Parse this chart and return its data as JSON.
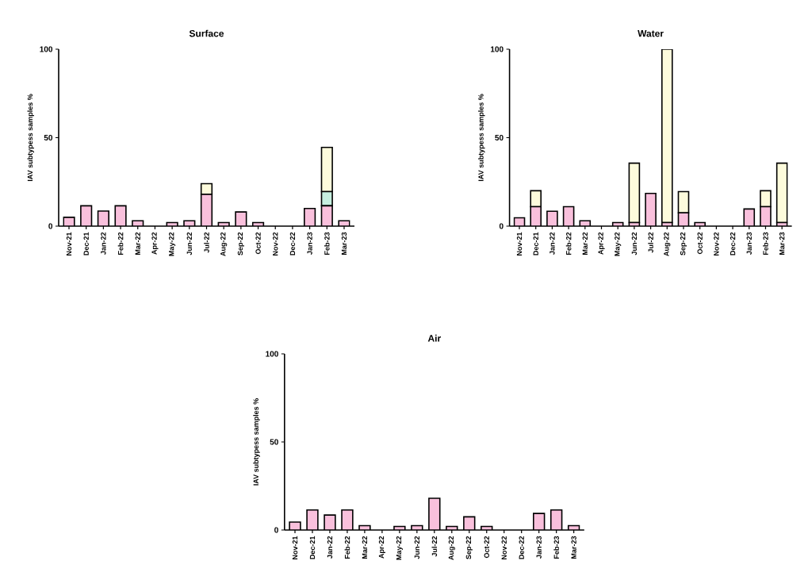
{
  "chart_data": [
    {
      "type": "bar",
      "title": "Surface",
      "ylabel": "IAV subtypess samples %",
      "stacked": true,
      "categories": [
        "Nov-21",
        "Dec-21",
        "Jan-22",
        "Feb-22",
        "Mar-22",
        "Apr-22",
        "May-22",
        "Jun-22",
        "Jul-22",
        "Aug-22",
        "Sep-22",
        "Oct-22",
        "Nov-22",
        "Dec-22",
        "Jan-23",
        "Feb-23",
        "Mar-23"
      ],
      "ylim": [
        0,
        100
      ],
      "yticks": [
        0,
        50,
        100
      ],
      "series": [
        {
          "color": "#f9c0dc",
          "values": [
            5,
            11.5,
            8.5,
            11.5,
            3,
            0,
            2,
            3,
            18,
            2,
            8,
            2,
            0,
            0,
            10,
            11.5,
            3
          ]
        },
        {
          "color": "#c6efe0",
          "values": [
            0,
            0,
            0,
            0,
            0,
            0,
            0,
            0,
            0,
            0,
            0,
            0,
            0,
            0,
            0,
            8,
            0
          ]
        },
        {
          "color": "#fdfbdc",
          "values": [
            0,
            0,
            0,
            0,
            0,
            0,
            0,
            0,
            6,
            0,
            0,
            0,
            0,
            0,
            0,
            25,
            0
          ]
        }
      ]
    },
    {
      "type": "bar",
      "title": "Water",
      "ylabel": "IAV subtypess samples %",
      "stacked": true,
      "categories": [
        "Nov-21",
        "Dec-21",
        "Jan-22",
        "Feb-22",
        "Mar-22",
        "Apr-22",
        "May-22",
        "Jun-22",
        "Jul-22",
        "Aug-22",
        "Sep-22",
        "Oct-22",
        "Nov-22",
        "Dec-22",
        "Jan-23",
        "Feb-23",
        "Mar-23"
      ],
      "ylim": [
        0,
        100
      ],
      "yticks": [
        0,
        50,
        100
      ],
      "series": [
        {
          "color": "#f9c0dc",
          "values": [
            4.7,
            11,
            8.4,
            11,
            3,
            0,
            2,
            2,
            18.5,
            2,
            7.5,
            2,
            0,
            0,
            9.7,
            11,
            2
          ]
        },
        {
          "color": "#fdfbdc",
          "values": [
            0,
            9,
            0,
            0,
            0,
            0,
            0,
            33.6,
            0,
            98,
            12,
            0,
            0,
            0,
            0,
            9,
            33.6
          ]
        }
      ]
    },
    {
      "type": "bar",
      "title": "Air",
      "ylabel": "IAV subtypess samples %",
      "stacked": true,
      "categories": [
        "Nov-21",
        "Dec-21",
        "Jan-22",
        "Feb-22",
        "Mar-22",
        "Apr-22",
        "May-22",
        "Jun-22",
        "Jul-22",
        "Aug-22",
        "Sep-22",
        "Oct-22",
        "Nov-22",
        "Dec-22",
        "Jan-23",
        "Feb-23",
        "Mar-23"
      ],
      "ylim": [
        0,
        100
      ],
      "yticks": [
        0,
        50,
        100
      ],
      "series": [
        {
          "color": "#f9c0dc",
          "values": [
            4.5,
            11.4,
            8.5,
            11.4,
            2.5,
            0,
            2,
            2.5,
            18,
            2,
            7.5,
            2,
            0,
            0,
            9.4,
            11.4,
            2.5
          ]
        }
      ]
    }
  ]
}
